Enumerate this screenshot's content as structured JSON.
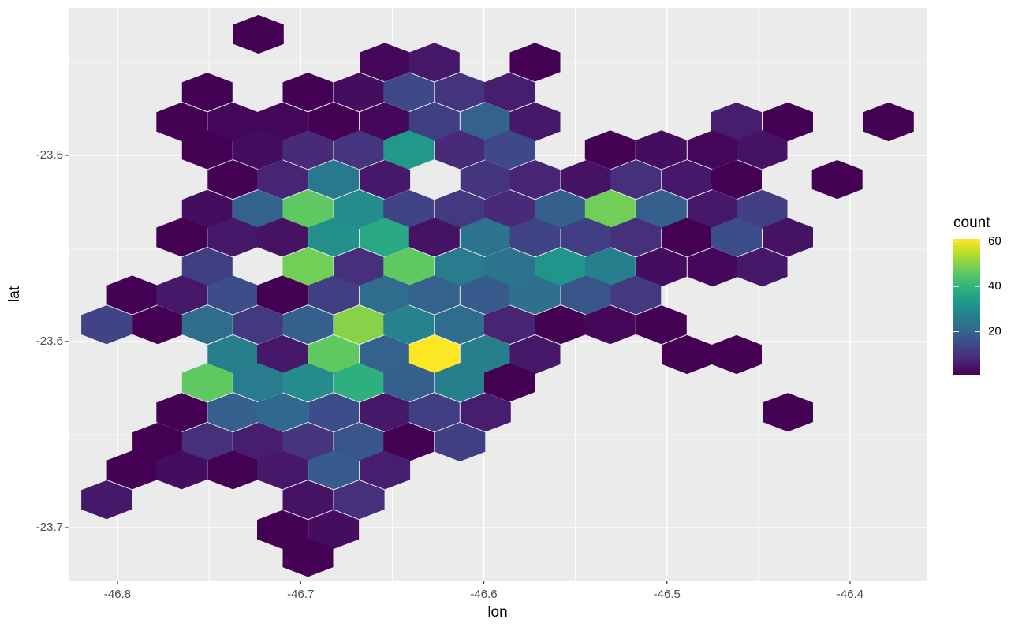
{
  "chart_data": {
    "type": "hexbin",
    "x_label": "lon",
    "y_label": "lat",
    "legend_title": "count",
    "xlim": [
      -46.8267,
      -46.3578
    ],
    "ylim": [
      -23.7288,
      -23.4208
    ],
    "xticks": [
      -46.8,
      -46.7,
      -46.6,
      -46.5,
      -46.4
    ],
    "yticks": [
      -23.5,
      -23.6,
      -23.7
    ],
    "grid": true,
    "colorscale": [
      "#440154",
      "#482878",
      "#3E4A89",
      "#31688E",
      "#26828E",
      "#1F9E89",
      "#35B779",
      "#6DCD59",
      "#B4DE2C",
      "#FDE725"
    ],
    "clim": [
      1,
      61
    ],
    "legend_ticks": [
      20,
      40,
      60
    ],
    "x": [
      -46.723,
      -46.654,
      -46.627,
      -46.572,
      -46.751,
      -46.696,
      -46.668,
      -46.641,
      -46.613,
      -46.586,
      -46.765,
      -46.737,
      -46.71,
      -46.682,
      -46.654,
      -46.627,
      -46.599,
      -46.572,
      -46.462,
      -46.434,
      -46.379,
      -46.751,
      -46.723,
      -46.696,
      -46.668,
      -46.641,
      -46.613,
      -46.586,
      -46.531,
      -46.503,
      -46.475,
      -46.448,
      -46.737,
      -46.71,
      -46.682,
      -46.654,
      -46.599,
      -46.572,
      -46.544,
      -46.517,
      -46.489,
      -46.462,
      -46.407,
      -46.751,
      -46.723,
      -46.696,
      -46.668,
      -46.641,
      -46.613,
      -46.586,
      -46.558,
      -46.531,
      -46.503,
      -46.475,
      -46.448,
      -46.765,
      -46.737,
      -46.71,
      -46.682,
      -46.654,
      -46.627,
      -46.599,
      -46.572,
      -46.544,
      -46.517,
      -46.489,
      -46.462,
      -46.434,
      -46.751,
      -46.696,
      -46.668,
      -46.641,
      -46.613,
      -46.586,
      -46.558,
      -46.531,
      -46.503,
      -46.475,
      -46.448,
      -46.792,
      -46.765,
      -46.737,
      -46.71,
      -46.682,
      -46.654,
      -46.627,
      -46.599,
      -46.572,
      -46.544,
      -46.517,
      -46.806,
      -46.778,
      -46.751,
      -46.723,
      -46.696,
      -46.668,
      -46.641,
      -46.613,
      -46.586,
      -46.558,
      -46.531,
      -46.503,
      -46.737,
      -46.71,
      -46.682,
      -46.654,
      -46.627,
      -46.599,
      -46.572,
      -46.489,
      -46.462,
      -46.751,
      -46.723,
      -46.696,
      -46.668,
      -46.641,
      -46.613,
      -46.586,
      -46.765,
      -46.737,
      -46.71,
      -46.682,
      -46.654,
      -46.627,
      -46.599,
      -46.434,
      -46.778,
      -46.751,
      -46.723,
      -46.696,
      -46.668,
      -46.641,
      -46.613,
      -46.792,
      -46.765,
      -46.737,
      -46.71,
      -46.682,
      -46.654,
      -46.806,
      -46.696,
      -46.668,
      -46.71,
      -46.682,
      -46.696
    ],
    "y": [
      -23.435,
      -23.45,
      -23.45,
      -23.45,
      -23.466,
      -23.466,
      -23.466,
      -23.466,
      -23.466,
      -23.466,
      -23.482,
      -23.482,
      -23.482,
      -23.482,
      -23.482,
      -23.482,
      -23.482,
      -23.482,
      -23.482,
      -23.482,
      -23.482,
      -23.497,
      -23.497,
      -23.497,
      -23.497,
      -23.497,
      -23.497,
      -23.497,
      -23.497,
      -23.497,
      -23.497,
      -23.497,
      -23.513,
      -23.513,
      -23.513,
      -23.513,
      -23.513,
      -23.513,
      -23.513,
      -23.513,
      -23.513,
      -23.513,
      -23.513,
      -23.529,
      -23.529,
      -23.529,
      -23.529,
      -23.529,
      -23.529,
      -23.529,
      -23.529,
      -23.529,
      -23.529,
      -23.529,
      -23.529,
      -23.544,
      -23.544,
      -23.544,
      -23.544,
      -23.544,
      -23.544,
      -23.544,
      -23.544,
      -23.544,
      -23.544,
      -23.544,
      -23.544,
      -23.544,
      -23.56,
      -23.56,
      -23.56,
      -23.56,
      -23.56,
      -23.56,
      -23.56,
      -23.56,
      -23.56,
      -23.56,
      -23.56,
      -23.575,
      -23.575,
      -23.575,
      -23.575,
      -23.575,
      -23.575,
      -23.575,
      -23.575,
      -23.575,
      -23.575,
      -23.575,
      -23.591,
      -23.591,
      -23.591,
      -23.591,
      -23.591,
      -23.591,
      -23.591,
      -23.591,
      -23.591,
      -23.591,
      -23.591,
      -23.591,
      -23.607,
      -23.607,
      -23.607,
      -23.607,
      -23.607,
      -23.607,
      -23.607,
      -23.607,
      -23.607,
      -23.622,
      -23.622,
      -23.622,
      -23.622,
      -23.622,
      -23.622,
      -23.622,
      -23.638,
      -23.638,
      -23.638,
      -23.638,
      -23.638,
      -23.638,
      -23.638,
      -23.638,
      -23.654,
      -23.654,
      -23.654,
      -23.654,
      -23.654,
      -23.654,
      -23.654,
      -23.669,
      -23.669,
      -23.669,
      -23.669,
      -23.669,
      -23.669,
      -23.685,
      -23.685,
      -23.685,
      -23.701,
      -23.701,
      -23.716
    ],
    "values": [
      1,
      2,
      5,
      1,
      1,
      1,
      3,
      14,
      10,
      6,
      1,
      2,
      2,
      1,
      2,
      12,
      20,
      5,
      6,
      1,
      1,
      1,
      3,
      8,
      10,
      33,
      8,
      14,
      1,
      3,
      2,
      4,
      1,
      7,
      25,
      5,
      10,
      7,
      4,
      9,
      5,
      1,
      1,
      3,
      20,
      46,
      30,
      13,
      11,
      8,
      19,
      48,
      19,
      5,
      12,
      1,
      5,
      4,
      31,
      37,
      4,
      24,
      13,
      12,
      9,
      1,
      15,
      4,
      12,
      48,
      9,
      46,
      26,
      24,
      32,
      27,
      3,
      2,
      5,
      1,
      5,
      15,
      1,
      12,
      22,
      20,
      18,
      23,
      17,
      11,
      13,
      1,
      22,
      11,
      19,
      50,
      28,
      22,
      7,
      1,
      2,
      1,
      27,
      5,
      46,
      20,
      61,
      27,
      5,
      1,
      1,
      46,
      26,
      30,
      39,
      19,
      27,
      1,
      1,
      19,
      21,
      15,
      5,
      12,
      6,
      1,
      1,
      9,
      6,
      10,
      17,
      1,
      12,
      1,
      3,
      1,
      5,
      18,
      6,
      5,
      4,
      9,
      1,
      3,
      1
    ]
  }
}
